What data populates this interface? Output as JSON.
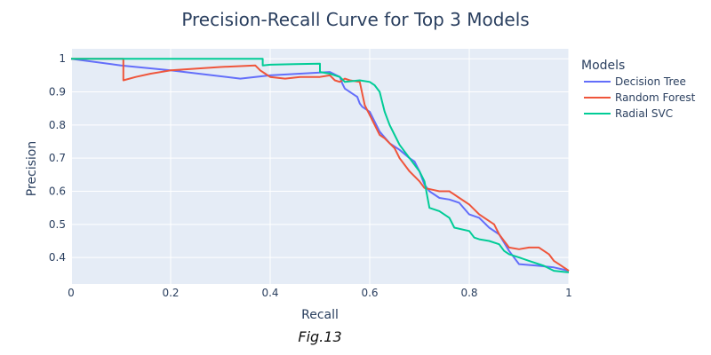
{
  "chart_data": {
    "type": "line",
    "title": "Precision-Recall Curve for Top 3 Models",
    "xlabel": "Recall",
    "ylabel": "Precision",
    "xlim": [
      0,
      1
    ],
    "ylim": [
      0.32,
      1.03
    ],
    "x_ticks": [
      0,
      0.2,
      0.4,
      0.6,
      0.8,
      1
    ],
    "x_tick_labels": [
      "0",
      "0.2",
      "0.4",
      "0.6",
      "0.8",
      "1"
    ],
    "y_ticks": [
      0.4,
      0.5,
      0.6,
      0.7,
      0.8,
      0.9,
      1
    ],
    "y_tick_labels": [
      "0.4",
      "0.5",
      "0.6",
      "0.7",
      "0.8",
      "0.9",
      "1"
    ],
    "grid": true,
    "legend": {
      "title": "Models",
      "placement": "right"
    },
    "caption": "Fig.13",
    "series": [
      {
        "name": "Decision Tree",
        "color": "#636efa",
        "x": [
          0,
          0.1,
          0.2,
          0.34,
          0.4,
          0.52,
          0.54,
          0.545,
          0.55,
          0.57,
          0.575,
          0.58,
          0.585,
          0.6,
          0.62,
          0.64,
          0.66,
          0.68,
          0.69,
          0.7,
          0.71,
          0.72,
          0.74,
          0.76,
          0.78,
          0.8,
          0.82,
          0.84,
          0.86,
          0.88,
          0.9,
          0.94,
          0.97,
          1.0
        ],
        "y": [
          1.0,
          0.98,
          0.965,
          0.94,
          0.95,
          0.96,
          0.945,
          0.925,
          0.91,
          0.89,
          0.885,
          0.865,
          0.855,
          0.84,
          0.78,
          0.745,
          0.725,
          0.7,
          0.69,
          0.66,
          0.62,
          0.6,
          0.58,
          0.575,
          0.565,
          0.53,
          0.52,
          0.49,
          0.47,
          0.42,
          0.38,
          0.375,
          0.37,
          0.36
        ]
      },
      {
        "name": "Random Forest",
        "color": "#ef553b",
        "x": [
          0,
          0.105,
          0.105,
          0.13,
          0.16,
          0.2,
          0.25,
          0.3,
          0.37,
          0.38,
          0.39,
          0.4,
          0.43,
          0.46,
          0.5,
          0.52,
          0.53,
          0.54,
          0.55,
          0.56,
          0.58,
          0.59,
          0.6,
          0.61,
          0.62,
          0.63,
          0.65,
          0.66,
          0.67,
          0.68,
          0.7,
          0.71,
          0.74,
          0.76,
          0.78,
          0.8,
          0.82,
          0.84,
          0.85,
          0.86,
          0.87,
          0.88,
          0.9,
          0.92,
          0.94,
          0.95,
          0.96,
          0.97,
          0.98,
          1.0
        ],
        "y": [
          1.0,
          1.0,
          0.935,
          0.945,
          0.955,
          0.965,
          0.97,
          0.975,
          0.98,
          0.965,
          0.955,
          0.945,
          0.94,
          0.945,
          0.945,
          0.95,
          0.935,
          0.93,
          0.94,
          0.935,
          0.93,
          0.86,
          0.83,
          0.8,
          0.77,
          0.76,
          0.73,
          0.7,
          0.68,
          0.66,
          0.63,
          0.61,
          0.6,
          0.6,
          0.58,
          0.56,
          0.53,
          0.51,
          0.5,
          0.47,
          0.45,
          0.43,
          0.425,
          0.43,
          0.43,
          0.42,
          0.41,
          0.39,
          0.38,
          0.36
        ]
      },
      {
        "name": "Radial SVC",
        "color": "#00cc96",
        "x": [
          0,
          0.385,
          0.385,
          0.4,
          0.45,
          0.5,
          0.5,
          0.52,
          0.53,
          0.54,
          0.55,
          0.58,
          0.6,
          0.61,
          0.62,
          0.625,
          0.63,
          0.64,
          0.65,
          0.66,
          0.67,
          0.68,
          0.69,
          0.7,
          0.71,
          0.72,
          0.74,
          0.76,
          0.77,
          0.8,
          0.81,
          0.82,
          0.84,
          0.86,
          0.87,
          0.88,
          0.9,
          0.92,
          0.95,
          0.97,
          1.0
        ],
        "y": [
          1.0,
          1.0,
          0.98,
          0.982,
          0.984,
          0.985,
          0.96,
          0.955,
          0.95,
          0.945,
          0.93,
          0.935,
          0.93,
          0.92,
          0.9,
          0.87,
          0.84,
          0.8,
          0.77,
          0.74,
          0.72,
          0.7,
          0.68,
          0.66,
          0.63,
          0.55,
          0.54,
          0.52,
          0.49,
          0.48,
          0.46,
          0.455,
          0.45,
          0.44,
          0.42,
          0.41,
          0.4,
          0.39,
          0.375,
          0.36,
          0.355
        ]
      }
    ]
  }
}
